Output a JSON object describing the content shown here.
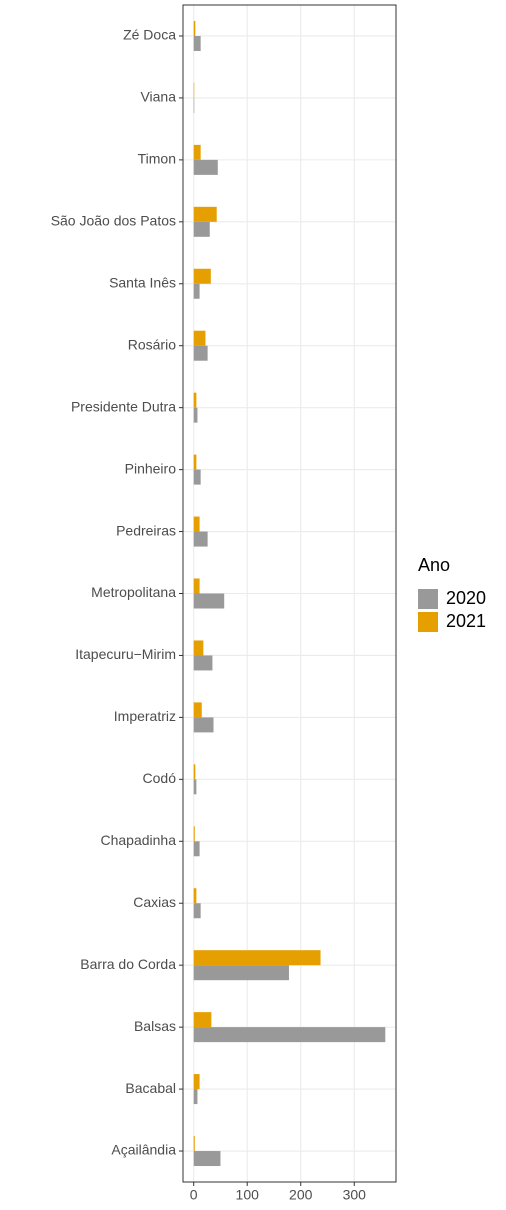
{
  "chart_data": {
    "type": "hbar",
    "categories": [
      "Zé Doca",
      "Viana",
      "Timon",
      "São João dos Patos",
      "Santa Inês",
      "Rosário",
      "Presidente Dutra",
      "Pinheiro",
      "Pedreiras",
      "Metropolitana",
      "Itapecuru−Mirim",
      "Imperatriz",
      "Codó",
      "Chapadinha",
      "Caxias",
      "Barra do Corda",
      "Balsas",
      "Bacabal",
      "Açailândia"
    ],
    "series": [
      {
        "name": "2020",
        "color": "#999999",
        "values": [
          13,
          1,
          45,
          30,
          11,
          26,
          7,
          13,
          26,
          57,
          35,
          37,
          5,
          11,
          13,
          178,
          358,
          7,
          50
        ]
      },
      {
        "name": "2021",
        "color": "#E69F00",
        "values": [
          3,
          1,
          13,
          43,
          32,
          22,
          5,
          5,
          11,
          11,
          18,
          15,
          3,
          2,
          5,
          237,
          33,
          11,
          2
        ]
      }
    ],
    "legend_title": "Ano",
    "xlim": [
      -20,
      378
    ],
    "xticks": [
      0,
      100,
      200,
      300
    ],
    "grid": true
  }
}
